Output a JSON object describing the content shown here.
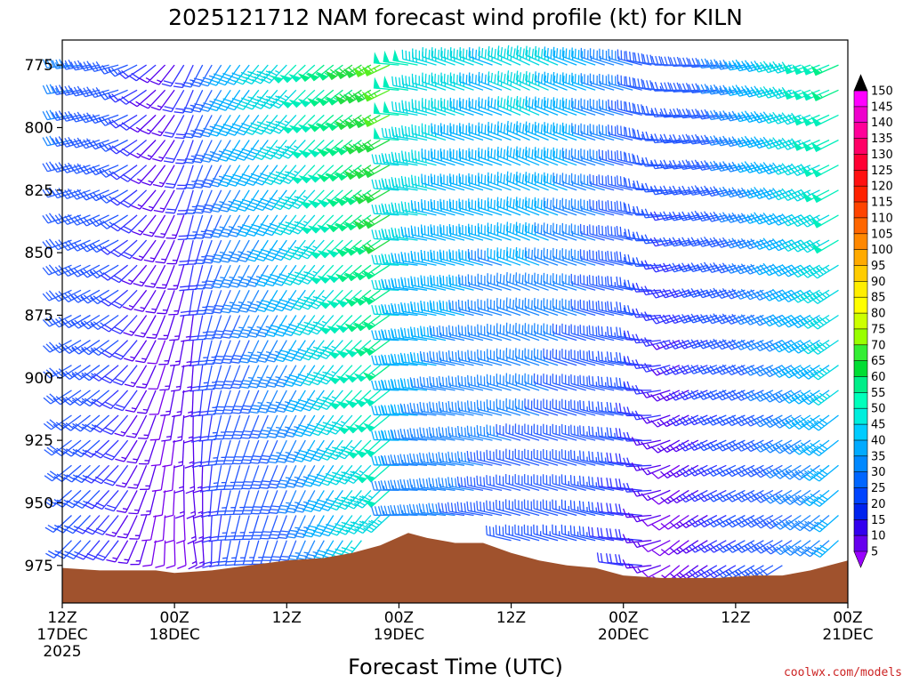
{
  "chart_data": {
    "type": "wind-barb time-height profile",
    "title": "2025121712 NAM forecast wind profile (kt) for KILN",
    "xlabel": "Forecast Time (UTC)",
    "ylabel": "",
    "units": "kt",
    "y_axis": {
      "quantity": "pressure (hPa)",
      "inverted": true,
      "range": [
        990,
        765
      ],
      "ticks": [
        "775",
        "800",
        "825",
        "850",
        "875",
        "900",
        "925",
        "950",
        "975"
      ]
    },
    "x_axis": {
      "range_hours": [
        0,
        84
      ],
      "ticks": [
        {
          "h": 0,
          "lines": [
            "12Z",
            "17DEC",
            "2025"
          ]
        },
        {
          "h": 12,
          "lines": [
            "00Z",
            "18DEC"
          ]
        },
        {
          "h": 24,
          "lines": [
            "12Z"
          ]
        },
        {
          "h": 36,
          "lines": [
            "00Z",
            "19DEC"
          ]
        },
        {
          "h": 48,
          "lines": [
            "12Z"
          ]
        },
        {
          "h": 60,
          "lines": [
            "00Z",
            "20DEC"
          ]
        },
        {
          "h": 72,
          "lines": [
            "12Z"
          ]
        },
        {
          "h": 84,
          "lines": [
            "00Z",
            "21DEC"
          ]
        }
      ]
    },
    "surface_pressure": [
      {
        "h": 0,
        "p": 976
      },
      {
        "h": 4,
        "p": 977
      },
      {
        "h": 10,
        "p": 977
      },
      {
        "h": 12,
        "p": 978
      },
      {
        "h": 16,
        "p": 977
      },
      {
        "h": 20,
        "p": 975
      },
      {
        "h": 24,
        "p": 973
      },
      {
        "h": 28,
        "p": 972
      },
      {
        "h": 31,
        "p": 970
      },
      {
        "h": 34,
        "p": 967
      },
      {
        "h": 37,
        "p": 962
      },
      {
        "h": 39,
        "p": 964
      },
      {
        "h": 42,
        "p": 966
      },
      {
        "h": 45,
        "p": 966
      },
      {
        "h": 48,
        "p": 970
      },
      {
        "h": 51,
        "p": 973
      },
      {
        "h": 54,
        "p": 975
      },
      {
        "h": 57,
        "p": 976
      },
      {
        "h": 60,
        "p": 979
      },
      {
        "h": 64,
        "p": 980
      },
      {
        "h": 67,
        "p": 980
      },
      {
        "h": 70,
        "p": 980
      },
      {
        "h": 74,
        "p": 979
      },
      {
        "h": 77,
        "p": 979
      },
      {
        "h": 80,
        "p": 977
      },
      {
        "h": 82,
        "p": 975
      },
      {
        "h": 84,
        "p": 973
      }
    ],
    "wind_keyframes": [
      {
        "h": 0,
        "low": {
          "dir": 225,
          "spd": 28
        },
        "high": {
          "dir": 265,
          "spd": 35
        }
      },
      {
        "h": 6,
        "low": {
          "dir": 215,
          "spd": 18
        },
        "high": {
          "dir": 255,
          "spd": 28
        }
      },
      {
        "h": 11,
        "low": {
          "dir": 180,
          "spd": 10
        },
        "high": {
          "dir": 225,
          "spd": 15
        }
      },
      {
        "h": 14,
        "low": {
          "dir": 170,
          "spd": 12
        },
        "high": {
          "dir": 205,
          "spd": 22
        }
      },
      {
        "h": 18,
        "low": {
          "dir": 190,
          "spd": 22
        },
        "high": {
          "dir": 215,
          "spd": 40
        }
      },
      {
        "h": 25,
        "low": {
          "dir": 200,
          "spd": 30
        },
        "high": {
          "dir": 225,
          "spd": 48
        }
      },
      {
        "h": 31,
        "low": {
          "dir": 215,
          "spd": 42
        },
        "high": {
          "dir": 235,
          "spd": 58
        }
      },
      {
        "h": 35,
        "low": {
          "dir": 225,
          "spd": 45
        },
        "high": {
          "dir": 245,
          "spd": 65
        }
      },
      {
        "h": 36,
        "low": {
          "dir": 270,
          "spd": 35
        },
        "high": {
          "dir": 275,
          "spd": 50
        }
      },
      {
        "h": 41,
        "low": {
          "dir": 275,
          "spd": 32
        },
        "high": {
          "dir": 290,
          "spd": 45
        }
      },
      {
        "h": 46,
        "low": {
          "dir": 280,
          "spd": 30
        },
        "high": {
          "dir": 290,
          "spd": 42
        }
      },
      {
        "h": 50,
        "low": {
          "dir": 285,
          "spd": 28
        },
        "high": {
          "dir": 295,
          "spd": 45
        }
      },
      {
        "h": 56,
        "low": {
          "dir": 285,
          "spd": 25
        },
        "high": {
          "dir": 290,
          "spd": 40
        }
      },
      {
        "h": 62,
        "low": {
          "dir": 275,
          "spd": 18
        },
        "high": {
          "dir": 285,
          "spd": 32
        }
      },
      {
        "h": 66,
        "low": {
          "dir": 230,
          "spd": 8
        },
        "high": {
          "dir": 270,
          "spd": 28
        }
      },
      {
        "h": 70,
        "low": {
          "dir": 240,
          "spd": 18
        },
        "high": {
          "dir": 265,
          "spd": 32
        }
      },
      {
        "h": 76,
        "low": {
          "dir": 240,
          "spd": 28
        },
        "high": {
          "dir": 255,
          "spd": 42
        }
      },
      {
        "h": 84,
        "low": {
          "dir": 225,
          "spd": 38
        },
        "high": {
          "dir": 245,
          "spd": 55
        }
      }
    ],
    "colorbar": {
      "labels": [
        "150",
        "145",
        "140",
        "135",
        "130",
        "125",
        "120",
        "115",
        "110",
        "105",
        "100",
        "95",
        "90",
        "85",
        "80",
        "75",
        "70",
        "65",
        "60",
        "55",
        "50",
        "45",
        "40",
        "35",
        "30",
        "25",
        "20",
        "15",
        "10",
        "5"
      ],
      "colors": [
        "#ff00ff",
        "#ee00cc",
        "#ff0099",
        "#ff0066",
        "#ff0033",
        "#ff1111",
        "#ff2200",
        "#ff4400",
        "#ff6600",
        "#ff8800",
        "#ffaa00",
        "#ffcc00",
        "#ffee00",
        "#ffff00",
        "#ccff00",
        "#99ff00",
        "#33ee33",
        "#00dd33",
        "#00ee88",
        "#00ffbb",
        "#00eedd",
        "#00ccff",
        "#00aaff",
        "#0088ff",
        "#0066ff",
        "#0044ff",
        "#0022ee",
        "#3300ee",
        "#6600ee"
      ],
      "arrow_top": "#000000",
      "arrow_bottom": "#9900ff",
      "speed_colors": [
        {
          "spd": 5,
          "color": "#8800ff"
        },
        {
          "spd": 10,
          "color": "#7700ee"
        },
        {
          "spd": 15,
          "color": "#5500ee"
        },
        {
          "spd": 20,
          "color": "#3333ff"
        },
        {
          "spd": 25,
          "color": "#2255ff"
        },
        {
          "spd": 30,
          "color": "#2a60ff"
        },
        {
          "spd": 35,
          "color": "#1e88ff"
        },
        {
          "spd": 40,
          "color": "#00b0ff"
        },
        {
          "spd": 45,
          "color": "#00d8e0"
        },
        {
          "spd": 50,
          "color": "#00eebb"
        },
        {
          "spd": 55,
          "color": "#00ee88"
        },
        {
          "spd": 60,
          "color": "#22dd44"
        },
        {
          "spd": 65,
          "color": "#55ee22"
        },
        {
          "spd": 70,
          "color": "#99ff00"
        }
      ]
    },
    "ground_color": "#a0522d"
  },
  "credit": "coolwx.com/models"
}
